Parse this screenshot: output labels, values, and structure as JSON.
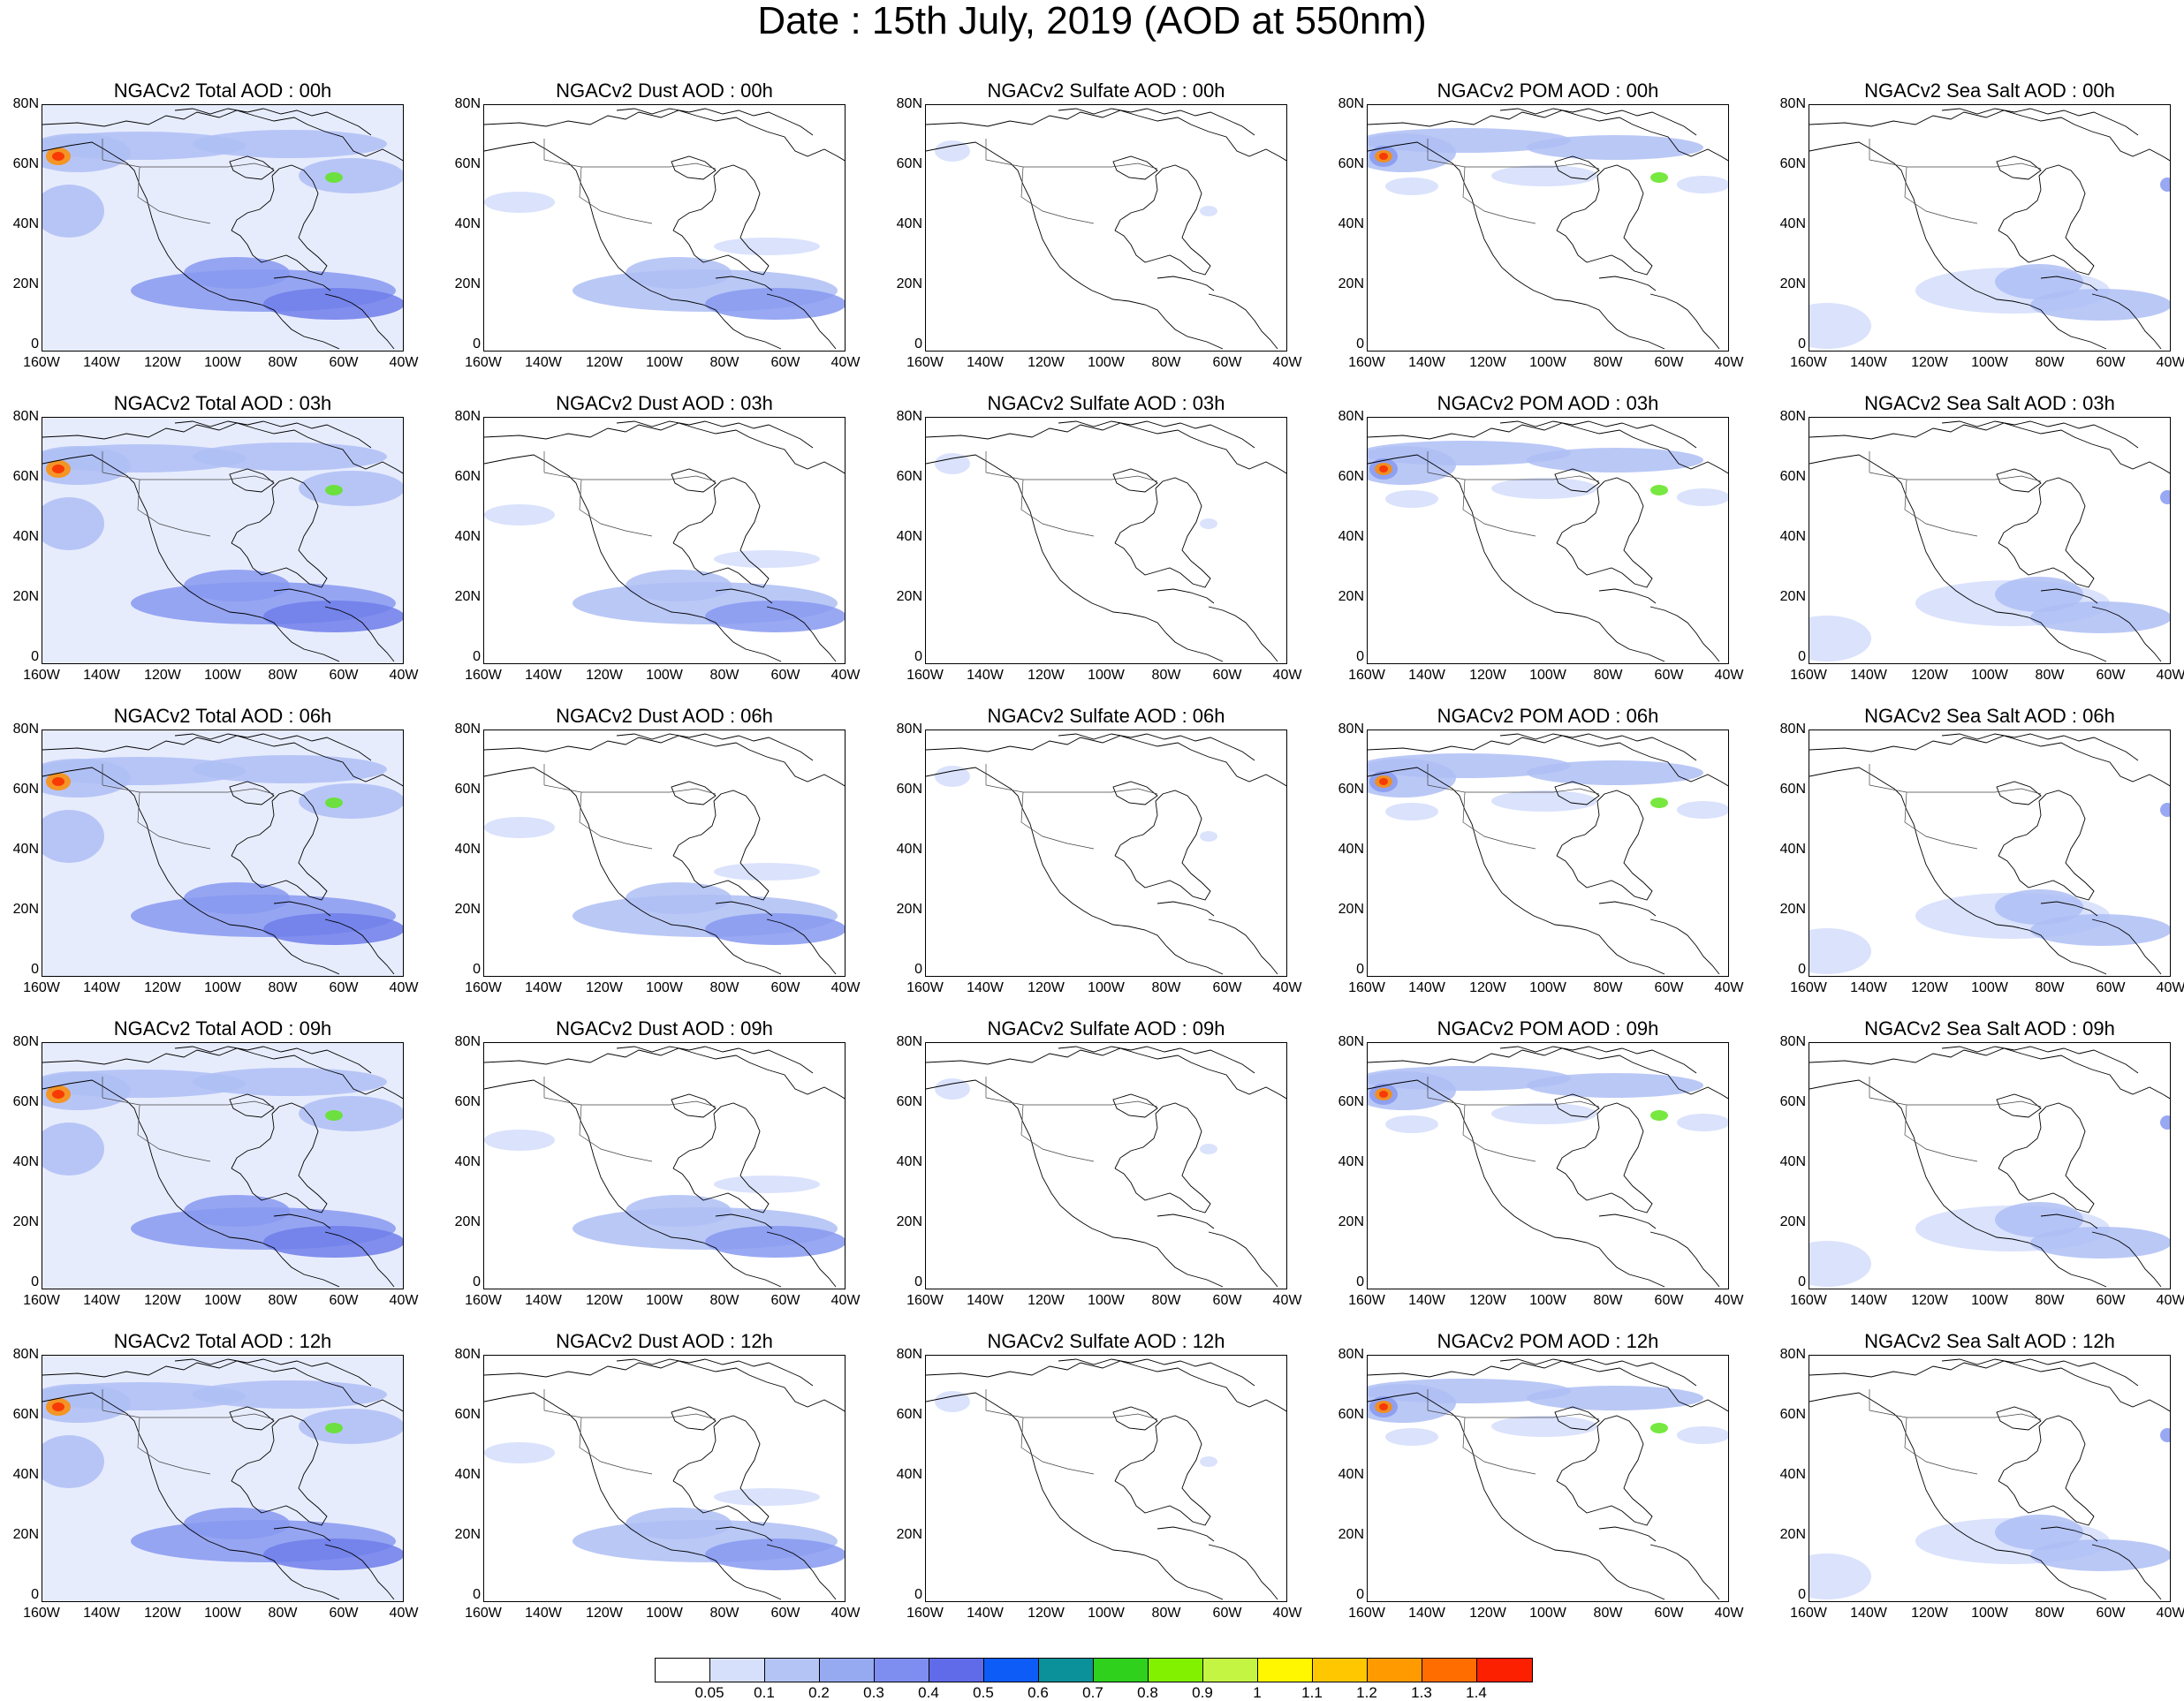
{
  "title": "Date : 15th July, 2019 (AOD at 550nm)",
  "lat_labels": [
    "80N",
    "60N",
    "40N",
    "20N",
    "0"
  ],
  "lon_labels": [
    "160W",
    "140W",
    "120W",
    "100W",
    "80W",
    "60W",
    "40W"
  ],
  "colorbar": {
    "labels": [
      "0.05",
      "0.1",
      "0.2",
      "0.3",
      "0.4",
      "0.5",
      "0.6",
      "0.7",
      "0.8",
      "0.9",
      "1",
      "1.1",
      "1.2",
      "1.3",
      "1.4"
    ],
    "colors": [
      "#ffffff",
      "#d7e0fb",
      "#b4c4f5",
      "#96aaf1",
      "#7d8ef0",
      "#5f6be9",
      "#0d5cf7",
      "#0a9199",
      "#2fd11d",
      "#82f100",
      "#c4f542",
      "#fff700",
      "#ffc700",
      "#ff9a00",
      "#ff6d00",
      "#fc2000"
    ]
  },
  "palette": {
    "light": "#d3ddfb",
    "medium": "#aebef5",
    "strong": "#8799f0",
    "deep": "#6f7eea",
    "green": "#5fe41f",
    "yellow": "#f5e800",
    "orange": "#ff8c00",
    "red": "#f82a00",
    "coast": "#000000"
  },
  "panels": [
    {
      "title": "NGACv2 Total AOD : 00h",
      "species": "total"
    },
    {
      "title": "NGACv2 Dust AOD : 00h",
      "species": "dust"
    },
    {
      "title": "NGACv2 Sulfate AOD : 00h",
      "species": "sulfate"
    },
    {
      "title": "NGACv2 POM AOD : 00h",
      "species": "pom"
    },
    {
      "title": "NGACv2 Sea Salt AOD : 00h",
      "species": "seasalt"
    },
    {
      "title": "NGACv2 Total AOD : 03h",
      "species": "total"
    },
    {
      "title": "NGACv2 Dust AOD : 03h",
      "species": "dust"
    },
    {
      "title": "NGACv2 Sulfate AOD : 03h",
      "species": "sulfate"
    },
    {
      "title": "NGACv2 POM AOD : 03h",
      "species": "pom"
    },
    {
      "title": "NGACv2 Sea Salt AOD : 03h",
      "species": "seasalt"
    },
    {
      "title": "NGACv2 Total AOD : 06h",
      "species": "total"
    },
    {
      "title": "NGACv2 Dust AOD : 06h",
      "species": "dust"
    },
    {
      "title": "NGACv2 Sulfate AOD : 06h",
      "species": "sulfate"
    },
    {
      "title": "NGACv2 POM AOD : 06h",
      "species": "pom"
    },
    {
      "title": "NGACv2 Sea Salt AOD : 06h",
      "species": "seasalt"
    },
    {
      "title": "NGACv2 Total AOD : 09h",
      "species": "total"
    },
    {
      "title": "NGACv2 Dust AOD : 09h",
      "species": "dust"
    },
    {
      "title": "NGACv2 Sulfate AOD : 09h",
      "species": "sulfate"
    },
    {
      "title": "NGACv2 POM AOD : 09h",
      "species": "pom"
    },
    {
      "title": "NGACv2 Sea Salt  AOD : 09h",
      "species": "seasalt"
    },
    {
      "title": "NGACv2 Total AOD  : 12h",
      "species": "total"
    },
    {
      "title": "NGACv2 Dust AOD : 12h",
      "species": "dust"
    },
    {
      "title": "NGACv2 Sulfate AOD : 12h",
      "species": "sulfate"
    },
    {
      "title": "NGACv2 POM  AOD : 12h",
      "species": "pom"
    },
    {
      "title": "NGACv2 Sea Salt  AOD : 12h",
      "species": "seasalt"
    }
  ]
}
